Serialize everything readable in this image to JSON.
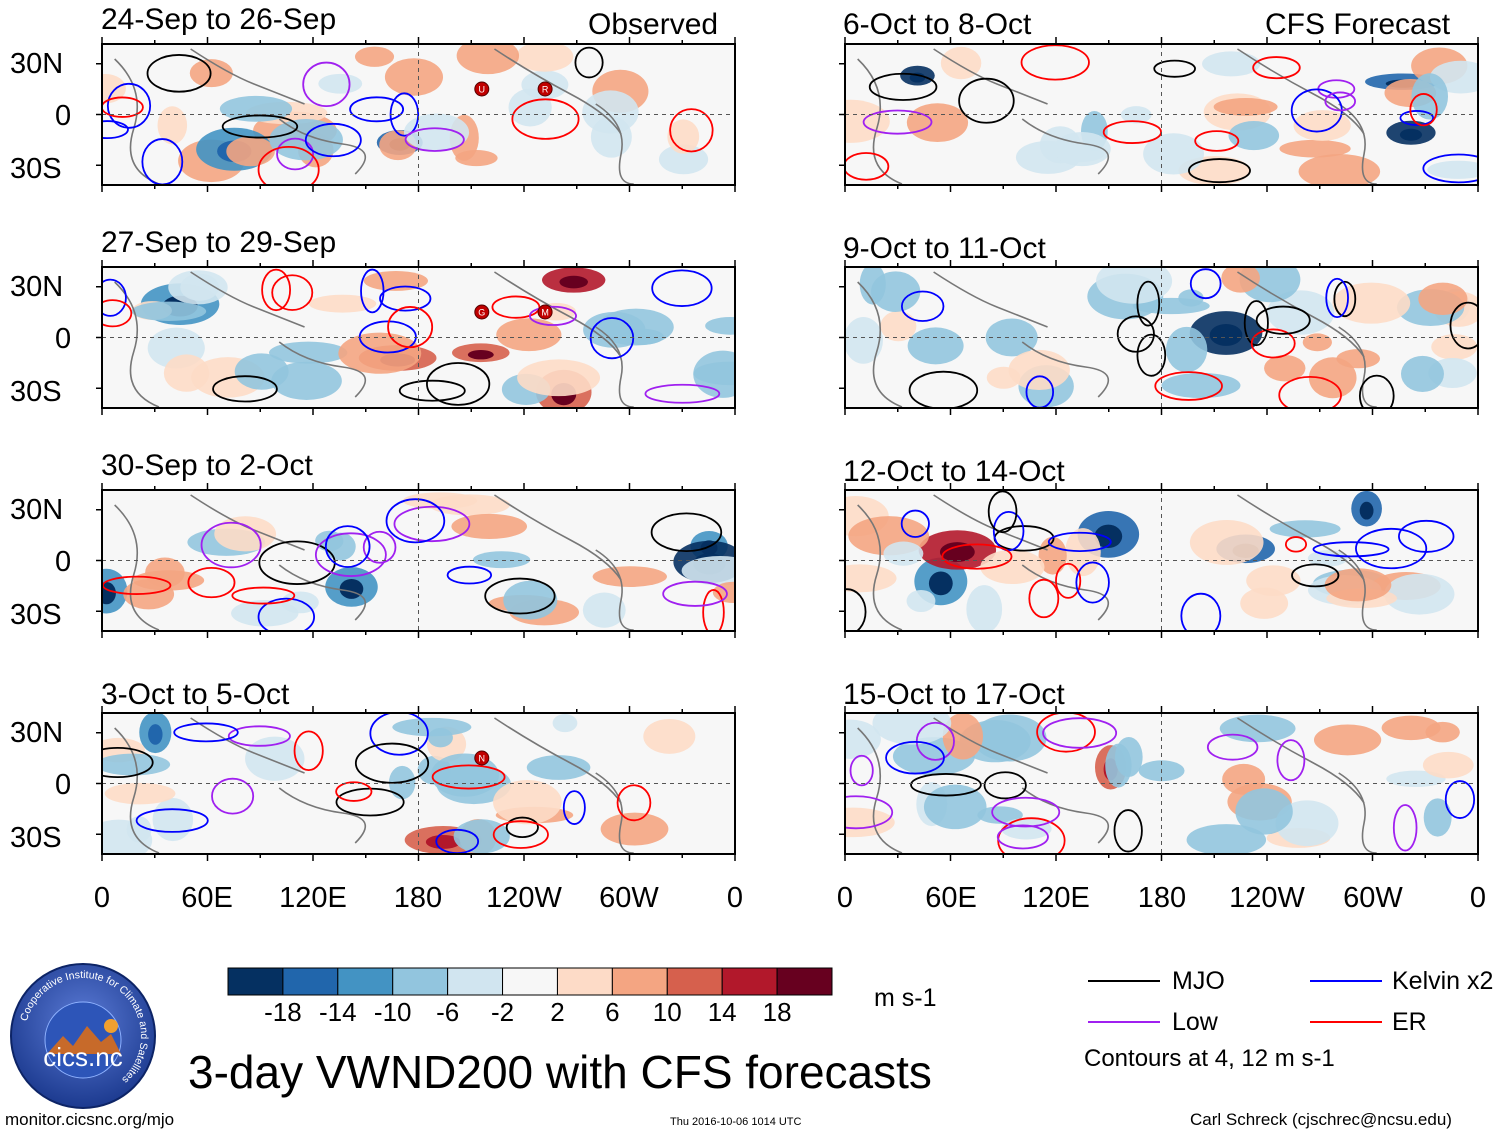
{
  "title": "3-day VWND200 with CFS forecasts",
  "header": {
    "observed_label": "Observed",
    "forecast_label": "CFS Forecast"
  },
  "panels_observed": [
    {
      "title": "24-Sep to 26-Sep",
      "storms": [
        "U",
        "R"
      ]
    },
    {
      "title": "27-Sep to 29-Sep",
      "storms": [
        "G",
        "M"
      ]
    },
    {
      "title": "30-Sep to 2-Oct",
      "storms": []
    },
    {
      "title": "3-Oct to 5-Oct",
      "storms": [
        "N"
      ]
    }
  ],
  "panels_forecast": [
    {
      "title": "6-Oct to 8-Oct"
    },
    {
      "title": "9-Oct to 11-Oct"
    },
    {
      "title": "12-Oct to 14-Oct"
    },
    {
      "title": "15-Oct to 17-Oct"
    }
  ],
  "axes": {
    "lat_labels": [
      "30N",
      "0",
      "30S"
    ],
    "lon_labels": [
      "0",
      "60E",
      "120E",
      "180",
      "120W",
      "60W",
      "0"
    ]
  },
  "colorbar": {
    "unit": "m s-1",
    "ticks": [
      "-18",
      "-14",
      "-10",
      "-6",
      "-2",
      "2",
      "6",
      "10",
      "14",
      "18"
    ],
    "colors": [
      "#053061",
      "#2166ac",
      "#4393c3",
      "#92c5de",
      "#d1e5f0",
      "#f7f7f7",
      "#fddbc7",
      "#f4a582",
      "#d6604d",
      "#b2182b",
      "#67001f"
    ]
  },
  "legend": {
    "items": [
      {
        "label": "MJO",
        "color": "#000000"
      },
      {
        "label": "Kelvin x2",
        "color": "#0000ff"
      },
      {
        "label": "Low",
        "color": "#a020f0"
      },
      {
        "label": "ER",
        "color": "#ff0000"
      }
    ],
    "contour_note": "Contours at 4, 12 m s-1"
  },
  "logo": {
    "name": "cics.nc",
    "ring_text": "Cooperative Institute for Climate and Satellites"
  },
  "footer": {
    "url": "monitor.cicsnc.org/mjo",
    "timestamp": "Thu 2016-10-06 1014 UTC",
    "author": "Carl Schreck (cjschrec@ncsu.edu)"
  },
  "chart_data": {
    "type": "heatmap",
    "variable": "200-hPa meridional wind (VWND200) 3-day mean anomaly",
    "unit": "m s-1",
    "lon_range": [
      0,
      360
    ],
    "lat_range": [
      -40,
      40
    ],
    "color_levels": [
      -18,
      -14,
      -10,
      -6,
      -2,
      2,
      6,
      10,
      14,
      18
    ],
    "contour_levels": [
      4,
      12
    ],
    "contour_fields": [
      "MJO",
      "Kelvin x2",
      "Low",
      "ER"
    ],
    "panels": [
      {
        "period": "24-Sep to 26-Sep",
        "source": "Observed"
      },
      {
        "period": "27-Sep to 29-Sep",
        "source": "Observed"
      },
      {
        "period": "30-Sep to 2-Oct",
        "source": "Observed"
      },
      {
        "period": "3-Oct to 5-Oct",
        "source": "Observed"
      },
      {
        "period": "6-Oct to 8-Oct",
        "source": "CFS Forecast"
      },
      {
        "period": "9-Oct to 11-Oct",
        "source": "CFS Forecast"
      },
      {
        "period": "12-Oct to 14-Oct",
        "source": "CFS Forecast"
      },
      {
        "period": "15-Oct to 17-Oct",
        "source": "CFS Forecast"
      }
    ]
  }
}
